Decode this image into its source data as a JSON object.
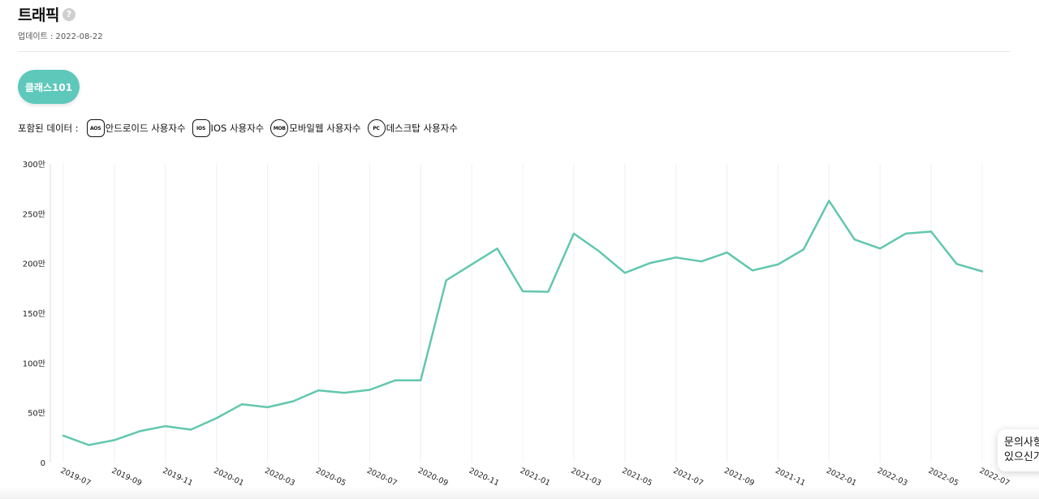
{
  "header": {
    "title": "트래픽",
    "help_icon": "?",
    "updated": "업데이트 : 2022-08-22"
  },
  "filter": {
    "pill_label": "클래스101"
  },
  "legend": {
    "lead": "포함된 데이터 :",
    "items": [
      {
        "badge": "AOS",
        "label": "안드로이드 사용자수",
        "icon": "android-badge-icon"
      },
      {
        "badge": "IOS",
        "label": "IOS 사용자수",
        "icon": "ios-badge-icon"
      },
      {
        "badge": "MOB",
        "label": "모바일웹 사용자수",
        "icon": "mobile-web-badge-icon"
      },
      {
        "badge": "PC",
        "label": "데스크탑 사용자수",
        "icon": "desktop-badge-icon"
      }
    ]
  },
  "floating": {
    "line1": "문의사항",
    "line2": "있으신가"
  },
  "colors": {
    "accent": "#5ec8bb",
    "line": "#62c7ae",
    "grid": "#f0f0f0"
  },
  "chart_data": {
    "type": "line",
    "title": "",
    "xlabel": "",
    "ylabel": "",
    "ylim": [
      0,
      3000000
    ],
    "yticks": [
      0,
      500000,
      1000000,
      1500000,
      2000000,
      2500000,
      3000000
    ],
    "ytick_labels": [
      "0",
      "50만",
      "100만",
      "150만",
      "200만",
      "250만",
      "300만"
    ],
    "x": [
      "2019-07",
      "2019-08",
      "2019-09",
      "2019-10",
      "2019-11",
      "2019-12",
      "2020-01",
      "2020-02",
      "2020-03",
      "2020-04",
      "2020-05",
      "2020-06",
      "2020-07",
      "2020-08",
      "2020-09",
      "2020-10",
      "2020-11",
      "2020-12",
      "2021-01",
      "2021-02",
      "2021-03",
      "2021-04",
      "2021-05",
      "2021-06",
      "2021-07",
      "2021-08",
      "2021-09",
      "2021-10",
      "2021-11",
      "2021-12",
      "2022-01",
      "2022-02",
      "2022-03",
      "2022-04",
      "2022-05",
      "2022-06",
      "2022-07"
    ],
    "xtick_labels": [
      "2019-07",
      "2019-09",
      "2019-11",
      "2020-01",
      "2020-03",
      "2020-05",
      "2020-07",
      "2020-09",
      "2020-11",
      "2021-01",
      "2021-03",
      "2021-05",
      "2021-07",
      "2021-09",
      "2021-11",
      "2022-01",
      "2022-03",
      "2022-05",
      "2022-07"
    ],
    "series": [
      {
        "values": [
          270000,
          175000,
          225000,
          315000,
          365000,
          330000,
          445000,
          585000,
          555000,
          615000,
          725000,
          700000,
          730000,
          825000,
          825000,
          1830000,
          1990000,
          2150000,
          1720000,
          1715000,
          2300000,
          2120000,
          1905000,
          2005000,
          2060000,
          2020000,
          2110000,
          1930000,
          1990000,
          2140000,
          2630000,
          2240000,
          2150000,
          2300000,
          2320000,
          1995000,
          1920000
        ]
      }
    ],
    "grid": true,
    "legend": "none"
  }
}
